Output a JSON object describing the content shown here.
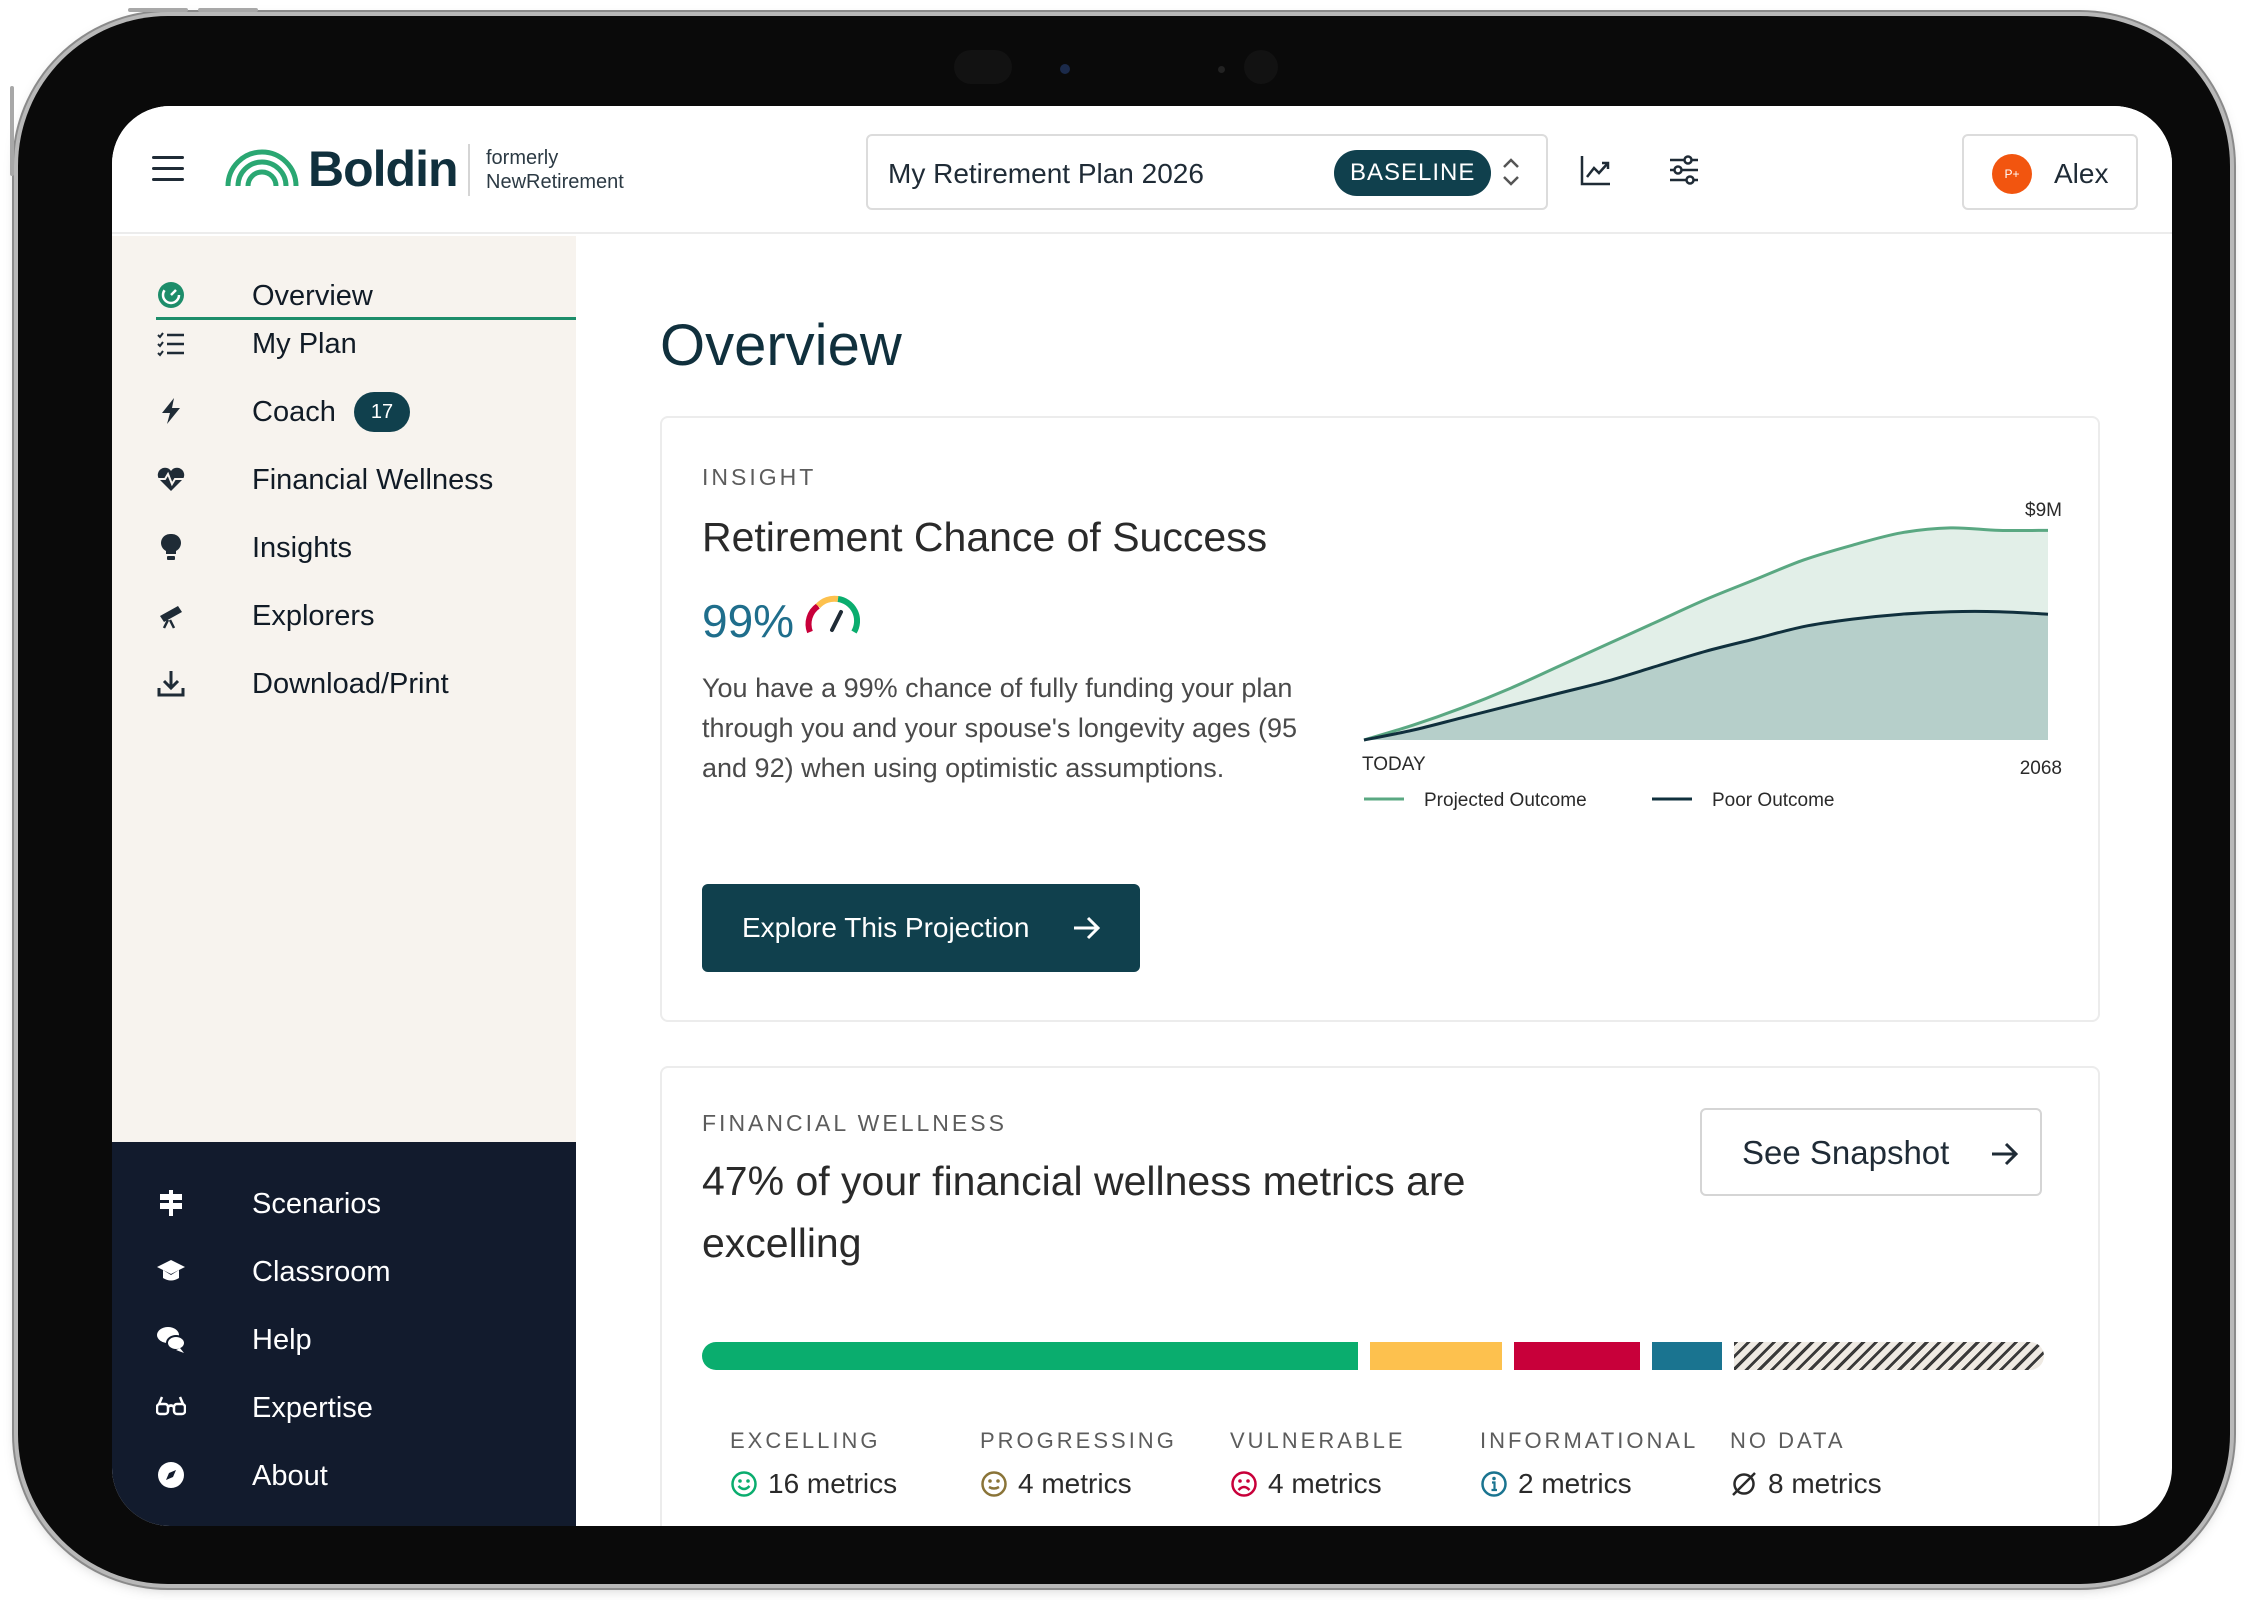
{
  "brand": {
    "name": "Boldin",
    "formerly_line1": "formerly",
    "formerly_line2": "NewRetirement",
    "green": "#2aa772",
    "navy": "#10404d"
  },
  "header": {
    "plan_name": "My Retirement Plan 2026",
    "plan_badge": "BASELINE",
    "user_name": "Alex",
    "user_initials": "P+"
  },
  "sidebar": {
    "items": [
      {
        "label": "Overview",
        "icon": "dashboard-gauge-icon",
        "active": true
      },
      {
        "label": "My Plan",
        "icon": "checklist-icon"
      },
      {
        "label": "Coach",
        "icon": "lightning-bolt-icon",
        "badge": "17"
      },
      {
        "label": "Financial Wellness",
        "icon": "heart-pulse-icon"
      },
      {
        "label": "Insights",
        "icon": "lightbulb-icon"
      },
      {
        "label": "Explorers",
        "icon": "telescope-icon"
      },
      {
        "label": "Download/Print",
        "icon": "download-icon"
      }
    ],
    "bottom_items": [
      {
        "label": "Scenarios",
        "icon": "signpost-icon"
      },
      {
        "label": "Classroom",
        "icon": "graduation-cap-icon"
      },
      {
        "label": "Help",
        "icon": "chat-bubbles-icon"
      },
      {
        "label": "Expertise",
        "icon": "glasses-icon"
      },
      {
        "label": "About",
        "icon": "compass-icon"
      }
    ]
  },
  "main": {
    "title": "Overview",
    "insight": {
      "eyebrow": "INSIGHT",
      "heading": "Retirement Chance of Success",
      "percent": "99%",
      "description": "You have a 99% chance of fully funding your plan through you and your spouse's longevity ages (95 and 92) when using optimistic assumptions.",
      "button_label": "Explore This Projection"
    },
    "wellness": {
      "eyebrow": "FINANCIAL WELLNESS",
      "heading": "47% of your financial wellness metrics are excelling",
      "button_label": "See Snapshot",
      "categories": [
        {
          "label": "EXCELLING",
          "value": "16 metrics",
          "count": 16,
          "color": "#0aad6e",
          "icon": "smile-icon"
        },
        {
          "label": "PROGRESSING",
          "value": "4 metrics",
          "count": 4,
          "color": "#fdc14e",
          "icon": "neutral-face-icon"
        },
        {
          "label": "VULNERABLE",
          "value": "4 metrics",
          "count": 4,
          "color": "#c8003a",
          "icon": "frown-icon"
        },
        {
          "label": "INFORMATIONAL",
          "value": "2 metrics",
          "count": 2,
          "color": "#1a7490",
          "icon": "info-circle-icon"
        },
        {
          "label": "NO DATA",
          "value": "8 metrics",
          "count": 8,
          "color": "#9a9a9a",
          "icon": "empty-set-icon"
        }
      ]
    }
  },
  "chart_data": {
    "type": "area",
    "title": "",
    "x_start_label": "TODAY",
    "x_end_label": "2068",
    "y_max_label": "$9M",
    "ylim": [
      0,
      9
    ],
    "series": [
      {
        "name": "Projected Outcome",
        "color": "#5aa882",
        "fill": "#e2efe8",
        "values": [
          0,
          0.6,
          1.3,
          2.1,
          3.0,
          3.9,
          4.8,
          5.7,
          6.5,
          7.3,
          7.9,
          8.4,
          8.6,
          8.5,
          8.5
        ]
      },
      {
        "name": "Poor Outcome",
        "color": "#10303d",
        "fill": "#b6cfca",
        "values": [
          0,
          0.4,
          0.9,
          1.4,
          1.9,
          2.4,
          3.0,
          3.6,
          4.1,
          4.6,
          4.9,
          5.1,
          5.2,
          5.2,
          5.1
        ]
      }
    ]
  }
}
